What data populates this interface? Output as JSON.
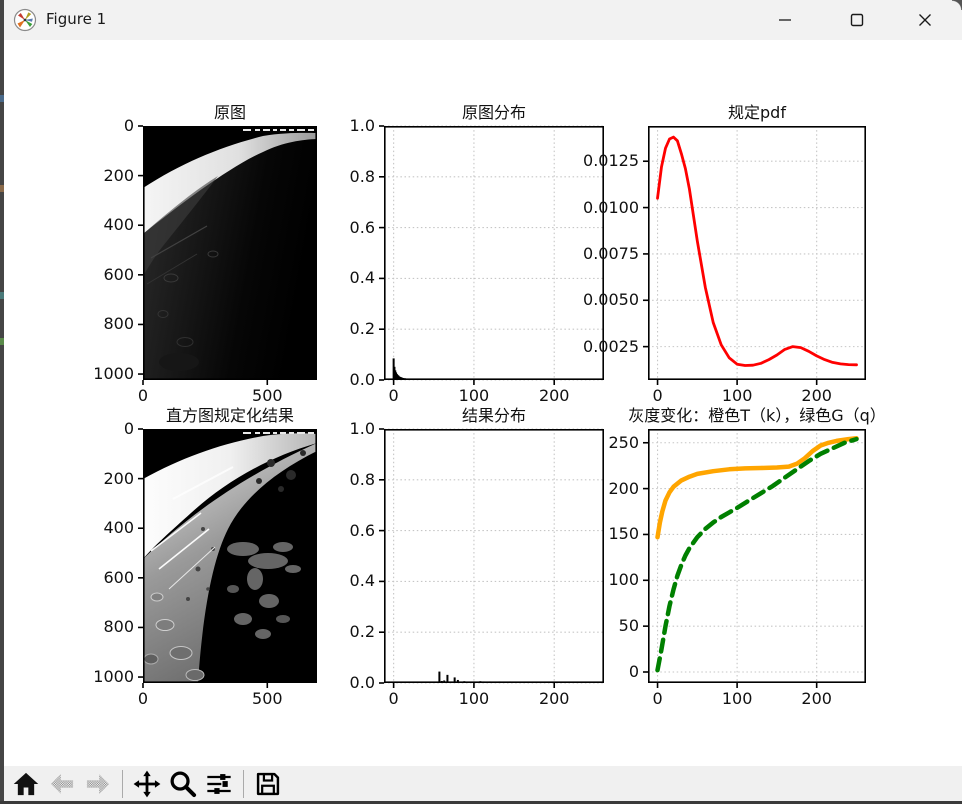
{
  "window": {
    "title": "Figure 1",
    "controls": [
      "minimize",
      "maximize",
      "close"
    ]
  },
  "toolbar": {
    "items": [
      {
        "name": "home",
        "icon": "home-icon",
        "disabled": false
      },
      {
        "name": "back",
        "icon": "back-arrow-icon",
        "disabled": true
      },
      {
        "name": "forward",
        "icon": "forward-arrow-icon",
        "disabled": true
      },
      {
        "name": "pan",
        "icon": "pan-arrows-icon",
        "disabled": false
      },
      {
        "name": "zoom",
        "icon": "zoom-magnifier-icon",
        "disabled": false
      },
      {
        "name": "configure-subplots",
        "icon": "sliders-icon",
        "disabled": false
      },
      {
        "name": "save",
        "icon": "save-floppy-icon",
        "disabled": false
      }
    ]
  },
  "colors": {
    "figure_bg": "#ffffff",
    "chrome_bg": "#f2f2f2",
    "toolbar_bg": "#f0f0f0",
    "grid": "#c6c6c6",
    "pdf_red": "#ff0000",
    "transform_orange": "#ffa500",
    "transform_green": "#008000",
    "bar_black": "#000000"
  },
  "chart_data": [
    {
      "id": "original-image",
      "type": "image",
      "title": "原图",
      "xlim": [
        0,
        700
      ],
      "ylim": [
        0,
        1024
      ],
      "y_down": true,
      "grid": false,
      "xticks": [
        0,
        500
      ],
      "xticklabels": [
        "0",
        "500"
      ],
      "yticks": [
        0,
        200,
        400,
        600,
        800,
        1000
      ],
      "yticklabels": [
        "0",
        "200",
        "400",
        "600",
        "800",
        "1000"
      ]
    },
    {
      "id": "original-hist",
      "type": "bar",
      "title": "原图分布",
      "xlim": [
        -12,
        262
      ],
      "ylim": [
        0,
        1
      ],
      "grid": true,
      "xticks": [
        0,
        100,
        200
      ],
      "xticklabels": [
        "0",
        "100",
        "200"
      ],
      "yticks": [
        0,
        0.2,
        0.4,
        0.6,
        0.8,
        1.0
      ],
      "yticklabels": [
        "0.0",
        "0.2",
        "0.4",
        "0.6",
        "0.8",
        "1.0"
      ],
      "bars": {
        "x": [
          0,
          1,
          2,
          3,
          4,
          5,
          6,
          7,
          8,
          9,
          10,
          12,
          14,
          16,
          18,
          20,
          23,
          26,
          30,
          35,
          40,
          46,
          52,
          60,
          70,
          80,
          95,
          110,
          130,
          150,
          175,
          200,
          230,
          250
        ],
        "h": [
          0.085,
          0.052,
          0.038,
          0.03,
          0.024,
          0.02,
          0.017,
          0.014,
          0.012,
          0.011,
          0.01,
          0.008,
          0.007,
          0.006,
          0.005,
          0.0045,
          0.004,
          0.0035,
          0.003,
          0.0026,
          0.0022,
          0.002,
          0.0018,
          0.0015,
          0.0013,
          0.0011,
          0.0009,
          0.0008,
          0.0007,
          0.0006,
          0.0005,
          0.0005,
          0.0004,
          0.0004
        ]
      }
    },
    {
      "id": "specified-pdf",
      "type": "line",
      "title": "规定pdf",
      "xlim": [
        -12,
        262
      ],
      "ylim": [
        0.0007,
        0.0144
      ],
      "grid": true,
      "xticks": [
        0,
        100,
        200
      ],
      "xticklabels": [
        "0",
        "100",
        "200"
      ],
      "yticks": [
        0.0025,
        0.005,
        0.0075,
        0.01,
        0.0125
      ],
      "yticklabels": [
        "0.0025",
        "0.0050",
        "0.0075",
        "0.0100",
        "0.0125"
      ],
      "series": [
        {
          "name": "规定pdf曲线",
          "color": "#ff0000",
          "width": 2.8,
          "x": [
            0,
            5,
            10,
            15,
            20,
            25,
            30,
            35,
            40,
            50,
            60,
            70,
            80,
            90,
            100,
            110,
            120,
            130,
            140,
            150,
            160,
            170,
            180,
            190,
            200,
            210,
            220,
            230,
            240,
            250
          ],
          "y": [
            0.0105,
            0.0122,
            0.0132,
            0.0137,
            0.0138,
            0.0136,
            0.0129,
            0.0121,
            0.011,
            0.0082,
            0.0057,
            0.0038,
            0.0026,
            0.0019,
            0.00155,
            0.00148,
            0.0015,
            0.0016,
            0.0018,
            0.00205,
            0.00235,
            0.0025,
            0.00245,
            0.00225,
            0.002,
            0.0018,
            0.00165,
            0.00157,
            0.00153,
            0.00152
          ]
        }
      ]
    },
    {
      "id": "result-image",
      "type": "image",
      "title": "直方图规定化结果",
      "xlim": [
        0,
        700
      ],
      "ylim": [
        0,
        1024
      ],
      "y_down": true,
      "grid": false,
      "xticks": [
        0,
        500
      ],
      "xticklabels": [
        "0",
        "500"
      ],
      "yticks": [
        0,
        200,
        400,
        600,
        800,
        1000
      ],
      "yticklabels": [
        "0",
        "200",
        "400",
        "600",
        "800",
        "1000"
      ]
    },
    {
      "id": "result-hist",
      "type": "bar",
      "title": "结果分布",
      "xlim": [
        -12,
        262
      ],
      "ylim": [
        0,
        1
      ],
      "grid": true,
      "xticks": [
        0,
        100,
        200
      ],
      "xticklabels": [
        "0",
        "100",
        "200"
      ],
      "yticks": [
        0,
        0.2,
        0.4,
        0.6,
        0.8,
        1.0
      ],
      "yticklabels": [
        "0.0",
        "0.2",
        "0.4",
        "0.6",
        "0.8",
        "1.0"
      ],
      "bars": {
        "x": [
          57,
          60,
          63,
          67,
          72,
          76,
          80,
          84,
          88,
          92,
          95,
          100,
          104,
          108,
          112,
          116,
          120,
          124,
          128,
          132,
          136,
          140,
          145,
          150,
          155,
          160,
          165,
          170,
          176,
          182,
          188,
          194,
          200,
          206,
          212,
          218,
          224,
          230,
          236,
          242,
          248
        ],
        "h": [
          0.045,
          0.008,
          0.01,
          0.032,
          0.006,
          0.022,
          0.012,
          0.005,
          0.007,
          0.005,
          0.004,
          0.006,
          0.005,
          0.007,
          0.006,
          0.005,
          0.006,
          0.004,
          0.005,
          0.006,
          0.004,
          0.003,
          0.006,
          0.004,
          0.005,
          0.003,
          0.004,
          0.003,
          0.004,
          0.005,
          0.003,
          0.004,
          0.003,
          0.004,
          0.005,
          0.004,
          0.003,
          0.004,
          0.003,
          0.005,
          0.004
        ]
      }
    },
    {
      "id": "gray-transform",
      "type": "line",
      "title": "灰度变化：橙色T（k），绿色G（q）",
      "xlim": [
        -12,
        262
      ],
      "ylim": [
        -12,
        265
      ],
      "grid": true,
      "xticks": [
        0,
        100,
        200
      ],
      "xticklabels": [
        "0",
        "100",
        "200"
      ],
      "yticks": [
        0,
        50,
        100,
        150,
        200,
        250
      ],
      "yticklabels": [
        "0",
        "50",
        "100",
        "150",
        "200",
        "250"
      ],
      "series": [
        {
          "name": "T(k)",
          "color": "#ffa500",
          "width": 4.5,
          "x": [
            0,
            3,
            6,
            10,
            15,
            20,
            30,
            40,
            50,
            70,
            90,
            110,
            130,
            150,
            165,
            175,
            185,
            195,
            205,
            215,
            225,
            240,
            250
          ],
          "y": [
            147,
            163,
            175,
            187,
            196,
            202,
            209,
            213,
            216,
            219,
            221,
            222,
            222.5,
            223,
            224,
            227,
            233,
            241,
            247,
            250,
            252,
            254,
            255
          ]
        },
        {
          "name": "G(q)",
          "color": "#008000",
          "width": 4.5,
          "dash": "12 7",
          "x": [
            0,
            5,
            10,
            15,
            20,
            25,
            30,
            35,
            40,
            50,
            60,
            70,
            80,
            90,
            100,
            115,
            130,
            145,
            160,
            175,
            190,
            205,
            220,
            235,
            250
          ],
          "y": [
            2,
            25,
            50,
            72,
            90,
            105,
            117,
            127,
            135,
            147,
            156,
            163,
            169,
            174,
            179,
            187,
            195,
            203,
            212,
            221,
            230,
            238,
            244,
            250,
            254
          ]
        }
      ]
    }
  ]
}
